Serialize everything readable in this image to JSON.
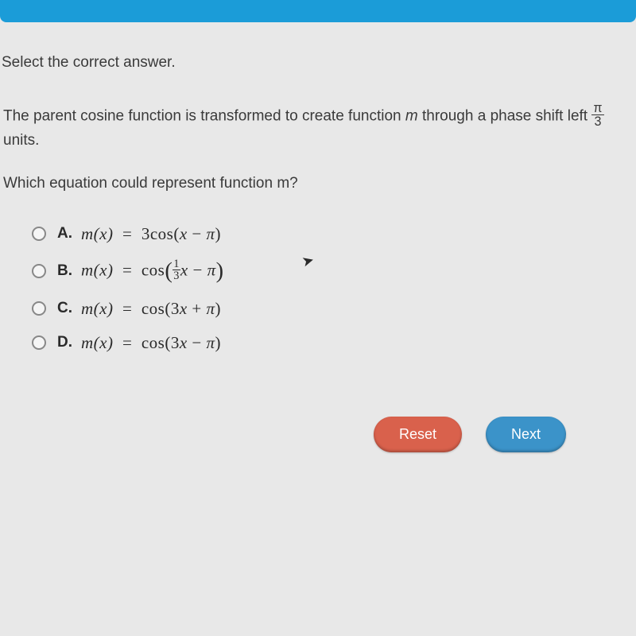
{
  "colors": {
    "topbar": "#1b9cd8",
    "background": "#e8e8e8",
    "text": "#3a3a3a",
    "reset_btn": "#d9614c",
    "next_btn": "#3b93c9",
    "btn_text": "#ffffff"
  },
  "instruction": "Select the correct answer.",
  "stem": {
    "prefix": "The parent cosine function is transformed to create function ",
    "func_letter": "m",
    "middle": " through a phase shift left ",
    "frac_num": "π",
    "frac_den": "3",
    "suffix": " units."
  },
  "sub_question": "Which equation could represent function m?",
  "options": [
    {
      "label": "A.",
      "lhs": "m(x)",
      "eq": "=",
      "rhs_plain": "3cos(x − π)"
    },
    {
      "label": "B.",
      "lhs": "m(x)",
      "eq": "=",
      "rhs_frac": {
        "before": "cos",
        "num": "1",
        "den": "3",
        "after_var": "x",
        "tail": " − π"
      }
    },
    {
      "label": "C.",
      "lhs": "m(x)",
      "eq": "=",
      "rhs_plain": "cos(3x + π)"
    },
    {
      "label": "D.",
      "lhs": "m(x)",
      "eq": "=",
      "rhs_plain": "cos(3x − π)"
    }
  ],
  "buttons": {
    "reset": "Reset",
    "next": "Next"
  }
}
